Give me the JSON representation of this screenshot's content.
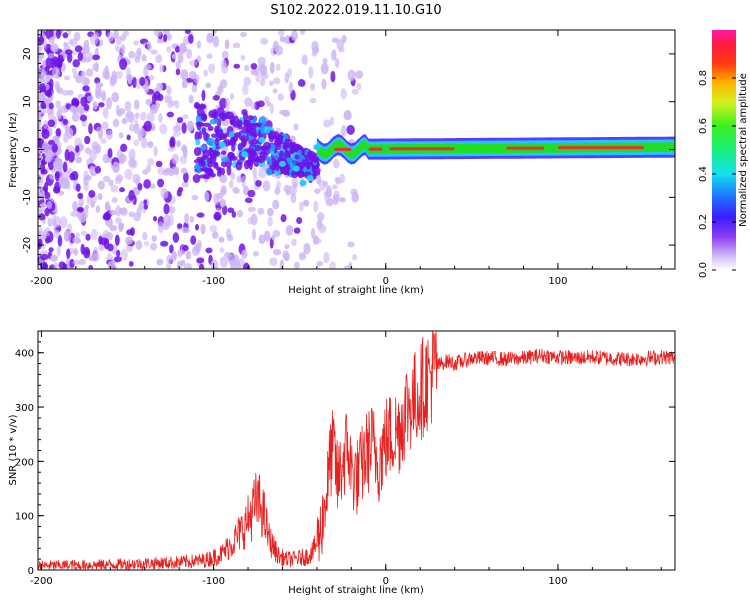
{
  "title": "S102.2022.019.11.10.G10",
  "colors": {
    "snr_line": "#e8201e",
    "track_core": "#e83030",
    "track_mid": "#22dd22",
    "track_outer": "#22ccff",
    "scatter_dark": "#6f12e8",
    "scatter_light": "#cdb3f5",
    "axis": "#000000"
  },
  "chart_data": [
    {
      "type": "heatmap",
      "title": "S102.2022.019.11.10.G10",
      "xlabel": "Height of straight line (km)",
      "ylabel": "Frequency (Hz)",
      "xlim": [
        -202,
        168
      ],
      "ylim": [
        -25,
        25
      ],
      "xticks": [
        -200,
        -100,
        0,
        100
      ],
      "xtick_labels": [
        "-200",
        "-100",
        "0",
        "100"
      ],
      "yticks": [
        -20,
        -10,
        0,
        10,
        20
      ],
      "ytick_labels": [
        "-20",
        "-10",
        "0",
        "10",
        "20"
      ],
      "colorbar": {
        "label": "Normalized spectral amplitude",
        "range": [
          0,
          1
        ],
        "ticks": [
          0.0,
          0.2,
          0.4,
          0.6,
          0.8
        ],
        "tick_labels": [
          "0.0",
          "0.2",
          "0.4",
          "0.6",
          "0.8"
        ]
      },
      "regions": [
        {
          "name": "noise",
          "x_range": [
            -202,
            -40
          ],
          "freq_range": [
            -25,
            25
          ],
          "amplitude": 0.15
        },
        {
          "name": "transition",
          "x_range": [
            -110,
            -40
          ],
          "freq_range": [
            -8,
            8
          ],
          "amplitude": 0.3
        },
        {
          "name": "tracked_signal",
          "x_range": [
            -40,
            168
          ],
          "freq_center": [
            0,
            0.5
          ],
          "amplitude": 0.95
        }
      ]
    },
    {
      "type": "line",
      "xlabel": "Height of straight line (km)",
      "ylabel": "SNR (10 * v/v)",
      "xlim": [
        -202,
        168
      ],
      "ylim": [
        0,
        440
      ],
      "xticks": [
        -200,
        -100,
        0,
        100
      ],
      "xtick_labels": [
        "-200",
        "-100",
        "0",
        "100"
      ],
      "yticks": [
        0,
        100,
        200,
        300,
        400
      ],
      "ytick_labels": [
        "0",
        "100",
        "200",
        "300",
        "400"
      ],
      "series": [
        {
          "name": "SNR",
          "x": [
            -202,
            -180,
            -160,
            -140,
            -120,
            -105,
            -95,
            -88,
            -82,
            -78,
            -75,
            -72,
            -70,
            -68,
            -65,
            -62,
            -58,
            -54,
            -50,
            -46,
            -42,
            -38,
            -34,
            -32,
            -30,
            -28,
            -25,
            -22,
            -20,
            -16,
            -12,
            -8,
            -4,
            0,
            4,
            8,
            12,
            16,
            20,
            24,
            28,
            32,
            36,
            40,
            50,
            60,
            70,
            80,
            90,
            100,
            110,
            120,
            130,
            140,
            150,
            160,
            168
          ],
          "values": [
            8,
            9,
            10,
            12,
            14,
            18,
            30,
            55,
            80,
            105,
            125,
            115,
            90,
            60,
            40,
            25,
            20,
            20,
            22,
            25,
            35,
            70,
            150,
            210,
            220,
            160,
            200,
            230,
            180,
            170,
            210,
            230,
            200,
            240,
            250,
            260,
            300,
            310,
            330,
            350,
            370,
            380,
            385,
            380,
            390,
            390,
            388,
            390,
            395,
            392,
            390,
            392,
            390,
            388,
            390,
            392,
            390
          ]
        }
      ]
    }
  ]
}
